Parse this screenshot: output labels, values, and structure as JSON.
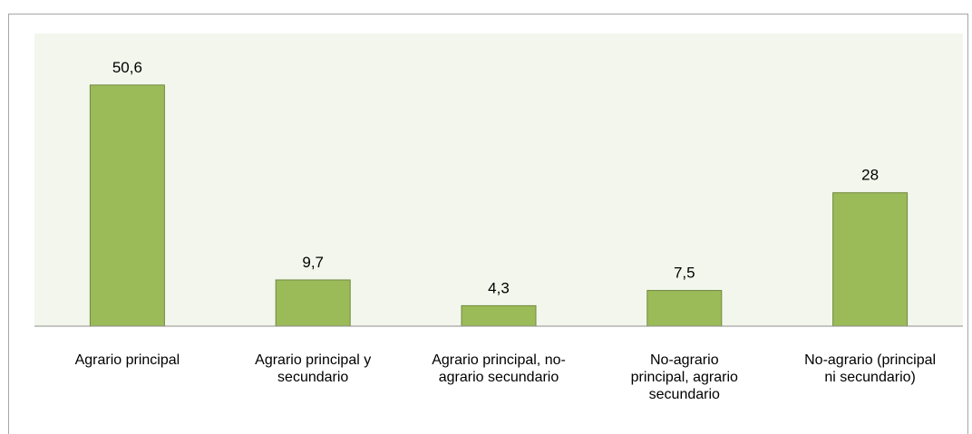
{
  "chart_data": {
    "type": "bar",
    "categories": [
      "Agrario principal",
      "Agrario principal y\nsecundario",
      "Agrario principal, no-\nagrario secundario",
      "No-agrario\nprincipal, agrario\nsecundario",
      "No-agrario (principal\nni secundario)"
    ],
    "values": [
      50.6,
      9.7,
      4.3,
      7.5,
      28
    ],
    "value_labels": [
      "50,6",
      "9,7",
      "4,3",
      "7,5",
      "28"
    ],
    "color": "#9bbb59",
    "ylim": [
      0,
      60
    ]
  }
}
